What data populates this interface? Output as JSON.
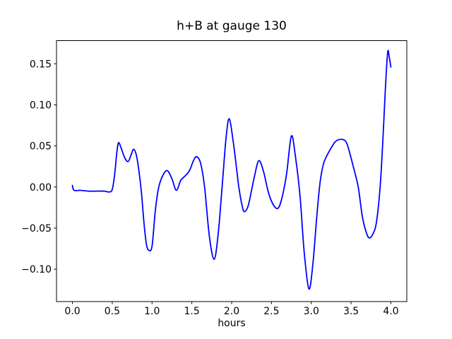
{
  "figure": {
    "background": "#ffffff",
    "text_color": "#000000",
    "spine_color": "#000000"
  },
  "chart_data": {
    "type": "line",
    "title": "h+B at gauge 130",
    "xlabel": "hours",
    "ylabel": "",
    "grid": false,
    "legend": null,
    "line_color": "#0000ff",
    "xlim": [
      -0.2,
      4.2
    ],
    "ylim": [
      -0.1394,
      0.1782
    ],
    "x_tick_values": [
      0.0,
      0.5,
      1.0,
      1.5,
      2.0,
      2.5,
      3.0,
      3.5,
      4.0
    ],
    "x_tick_labels": [
      "0.0",
      "0.5",
      "1.0",
      "1.5",
      "2.0",
      "2.5",
      "3.0",
      "3.5",
      "4.0"
    ],
    "y_tick_values": [
      -0.1,
      -0.05,
      0.0,
      0.05,
      0.1,
      0.15
    ],
    "y_tick_labels": [
      "−0.10",
      "−0.05",
      "0.00",
      "0.05",
      "0.10",
      "0.15"
    ],
    "series": [
      {
        "name": "h+B",
        "x": [
          0.0,
          0.02,
          0.1,
          0.2,
          0.3,
          0.4,
          0.46,
          0.5,
          0.53,
          0.56,
          0.58,
          0.61,
          0.655,
          0.7,
          0.74,
          0.77,
          0.805,
          0.84,
          0.87,
          0.9,
          0.93,
          0.96,
          1.0,
          1.04,
          1.08,
          1.13,
          1.19,
          1.25,
          1.305,
          1.36,
          1.41,
          1.47,
          1.52,
          1.56,
          1.61,
          1.66,
          1.72,
          1.78,
          1.83,
          1.88,
          1.93,
          1.97,
          2.02,
          2.065,
          2.09,
          2.13,
          2.16,
          2.21,
          2.28,
          2.34,
          2.4,
          2.46,
          2.52,
          2.58,
          2.63,
          2.69,
          2.75,
          2.8,
          2.86,
          2.91,
          2.97,
          3.02,
          3.07,
          3.11,
          3.15,
          3.19,
          3.24,
          3.3,
          3.36,
          3.43,
          3.47,
          3.53,
          3.59,
          3.64,
          3.69,
          3.73,
          3.78,
          3.82,
          3.865,
          3.9,
          3.93,
          3.96,
          3.98,
          4.0
        ],
        "y": [
          0.002,
          -0.004,
          -0.004,
          -0.005,
          -0.005,
          -0.005,
          -0.006,
          -0.003,
          0.015,
          0.044,
          0.054,
          0.048,
          0.036,
          0.031,
          0.04,
          0.046,
          0.038,
          0.016,
          -0.01,
          -0.045,
          -0.07,
          -0.077,
          -0.072,
          -0.03,
          -0.002,
          0.013,
          0.02,
          0.01,
          -0.004,
          0.008,
          0.013,
          0.02,
          0.032,
          0.037,
          0.029,
          0.0,
          -0.06,
          -0.088,
          -0.058,
          0.0,
          0.06,
          0.083,
          0.055,
          0.02,
          0.0,
          -0.022,
          -0.03,
          -0.022,
          0.01,
          0.032,
          0.019,
          -0.006,
          -0.021,
          -0.026,
          -0.014,
          0.016,
          0.062,
          0.038,
          -0.012,
          -0.078,
          -0.124,
          -0.094,
          -0.035,
          0.005,
          0.027,
          0.037,
          0.046,
          0.055,
          0.058,
          0.056,
          0.046,
          0.024,
          0.0,
          -0.035,
          -0.055,
          -0.062,
          -0.056,
          -0.042,
          0.0,
          0.058,
          0.118,
          0.164,
          0.158,
          0.146
        ]
      }
    ]
  }
}
